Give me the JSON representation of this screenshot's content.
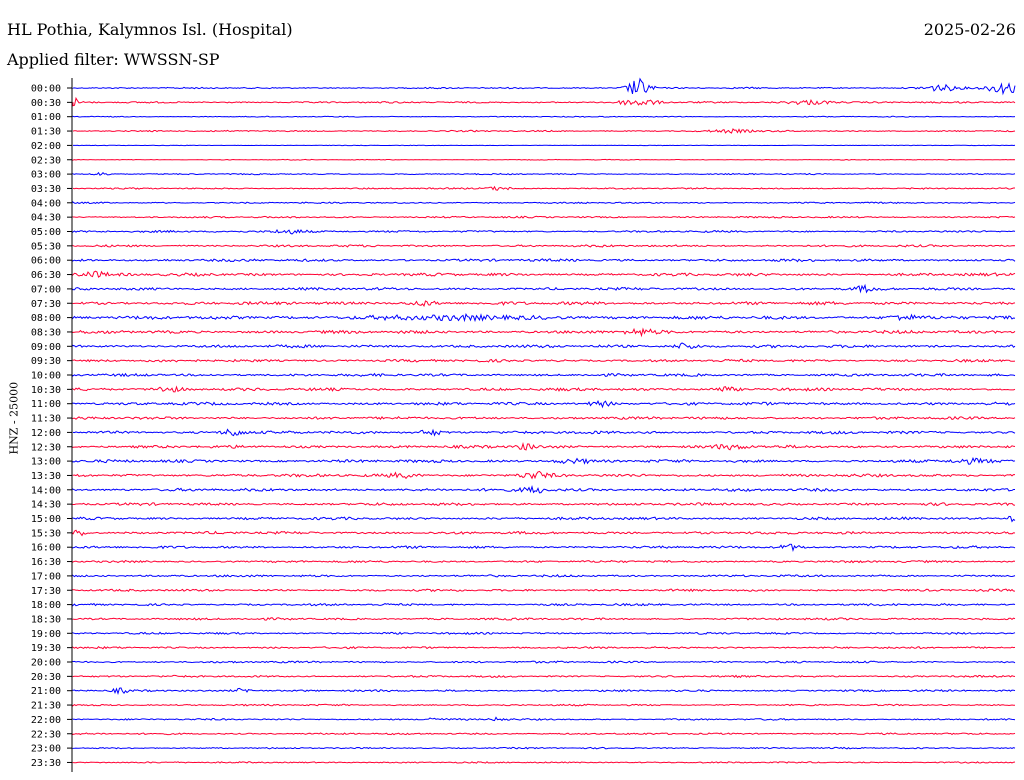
{
  "header": {
    "station": "HL Pothia, Kalymnos Isl. (Hospital)",
    "date": "2025-02-26",
    "filter": "Applied filter: WWSSN-SP"
  },
  "side_label": "HNZ - 25000",
  "colors": {
    "even_row": "#0000ff",
    "odd_row": "#ff0033",
    "background": "#ffffff"
  },
  "chart_data": {
    "type": "line",
    "plot_type": "helicorder",
    "row_labels": [
      "00:00",
      "00:30",
      "01:00",
      "01:30",
      "02:00",
      "02:30",
      "03:00",
      "03:30",
      "04:00",
      "04:30",
      "05:00",
      "05:30",
      "06:00",
      "06:30",
      "07:00",
      "07:30",
      "08:00",
      "08:30",
      "09:00",
      "09:30",
      "10:00",
      "10:30",
      "11:00",
      "11:30",
      "12:00",
      "12:30",
      "13:00",
      "13:30",
      "14:00",
      "14:30",
      "15:00",
      "15:30",
      "16:00",
      "16:30",
      "17:00",
      "17:30",
      "18:00",
      "18:30",
      "19:00",
      "19:30",
      "20:00",
      "20:30",
      "21:00",
      "21:30",
      "22:00",
      "22:30",
      "23:00",
      "23:30"
    ],
    "row_amplitude": [
      0.3,
      0.35,
      0.2,
      0.3,
      0.1,
      0.15,
      0.25,
      0.3,
      0.3,
      0.35,
      0.4,
      0.45,
      0.55,
      0.6,
      0.55,
      0.65,
      0.7,
      0.65,
      0.6,
      0.55,
      0.55,
      0.6,
      0.6,
      0.55,
      0.6,
      0.6,
      0.6,
      0.6,
      0.6,
      0.55,
      0.55,
      0.55,
      0.5,
      0.45,
      0.45,
      0.45,
      0.45,
      0.45,
      0.4,
      0.4,
      0.4,
      0.4,
      0.4,
      0.35,
      0.35,
      0.35,
      0.3,
      0.3
    ],
    "events": [
      {
        "row": 0,
        "t": 0.6,
        "amp": 3.5,
        "w": 0.012
      },
      {
        "row": 0,
        "t": 0.92,
        "amp": 1.2,
        "w": 0.02
      },
      {
        "row": 0,
        "t": 0.99,
        "amp": 2.0,
        "w": 0.02
      },
      {
        "row": 1,
        "t": 0.0,
        "amp": 2.0,
        "w": 0.006
      },
      {
        "row": 1,
        "t": 0.6,
        "amp": 1.2,
        "w": 0.02
      },
      {
        "row": 1,
        "t": 0.78,
        "amp": 0.8,
        "w": 0.025
      },
      {
        "row": 3,
        "t": 0.7,
        "amp": 0.6,
        "w": 0.02
      },
      {
        "row": 6,
        "t": 0.03,
        "amp": 0.6,
        "w": 0.01
      },
      {
        "row": 7,
        "t": 0.45,
        "amp": 0.6,
        "w": 0.015
      },
      {
        "row": 10,
        "t": 0.23,
        "amp": 0.8,
        "w": 0.02
      },
      {
        "row": 13,
        "t": 0.02,
        "amp": 1.0,
        "w": 0.015
      },
      {
        "row": 14,
        "t": 0.84,
        "amp": 1.0,
        "w": 0.01
      },
      {
        "row": 15,
        "t": 0.37,
        "amp": 0.8,
        "w": 0.015
      },
      {
        "row": 16,
        "t": 0.4,
        "amp": 0.6,
        "w": 0.1
      },
      {
        "row": 16,
        "t": 0.88,
        "amp": 1.0,
        "w": 0.015
      },
      {
        "row": 17,
        "t": 0.6,
        "amp": 1.0,
        "w": 0.015
      },
      {
        "row": 18,
        "t": 0.65,
        "amp": 1.2,
        "w": 0.012
      },
      {
        "row": 21,
        "t": 0.1,
        "amp": 1.0,
        "w": 0.015
      },
      {
        "row": 21,
        "t": 0.69,
        "amp": 0.8,
        "w": 0.012
      },
      {
        "row": 22,
        "t": 0.56,
        "amp": 1.0,
        "w": 0.012
      },
      {
        "row": 24,
        "t": 0.17,
        "amp": 1.5,
        "w": 0.01
      },
      {
        "row": 24,
        "t": 0.38,
        "amp": 1.0,
        "w": 0.012
      },
      {
        "row": 25,
        "t": 0.48,
        "amp": 1.0,
        "w": 0.01
      },
      {
        "row": 25,
        "t": 0.7,
        "amp": 0.7,
        "w": 0.02
      },
      {
        "row": 26,
        "t": 0.53,
        "amp": 0.7,
        "w": 0.02
      },
      {
        "row": 26,
        "t": 0.95,
        "amp": 0.7,
        "w": 0.02
      },
      {
        "row": 27,
        "t": 0.35,
        "amp": 0.8,
        "w": 0.015
      },
      {
        "row": 27,
        "t": 0.49,
        "amp": 1.2,
        "w": 0.015
      },
      {
        "row": 28,
        "t": 0.49,
        "amp": 1.2,
        "w": 0.012
      },
      {
        "row": 30,
        "t": 0.995,
        "amp": 1.0,
        "w": 0.006
      },
      {
        "row": 31,
        "t": 0.005,
        "amp": 1.2,
        "w": 0.008
      },
      {
        "row": 32,
        "t": 0.76,
        "amp": 1.0,
        "w": 0.012
      },
      {
        "row": 42,
        "t": 0.05,
        "amp": 0.8,
        "w": 0.008
      },
      {
        "row": 42,
        "t": 0.18,
        "amp": 0.8,
        "w": 0.01
      },
      {
        "row": 44,
        "t": 0.38,
        "amp": 1.0,
        "w": 0.004
      },
      {
        "row": 44,
        "t": 0.45,
        "amp": 0.6,
        "w": 0.008
      }
    ]
  }
}
